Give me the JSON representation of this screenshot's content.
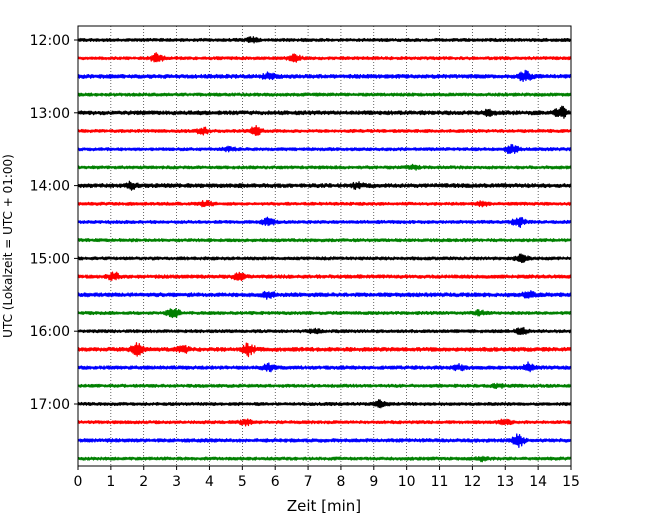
{
  "chart_data": {
    "type": "line",
    "title": "",
    "xlabel": "Zeit  [min]",
    "ylabel": "UTC (Lokalzeit = UTC + 01:00)",
    "xlim": [
      0,
      15
    ],
    "x_ticks": [
      "0",
      "1",
      "2",
      "3",
      "4",
      "5",
      "6",
      "7",
      "8",
      "9",
      "10",
      "11",
      "12",
      "13",
      "14",
      "15"
    ],
    "y_ticks": [
      {
        "label": "12:00",
        "trace_index": 0
      },
      {
        "label": "13:00",
        "trace_index": 4
      },
      {
        "label": "14:00",
        "trace_index": 8
      },
      {
        "label": "15:00",
        "trace_index": 12
      },
      {
        "label": "16:00",
        "trace_index": 16
      },
      {
        "label": "17:00",
        "trace_index": 20
      }
    ],
    "trace_interval_min": 15,
    "grid": {
      "x": "dotted",
      "y": false
    },
    "colors": [
      "#000000",
      "#ff0000",
      "#0000ff",
      "#008000"
    ],
    "series": [
      {
        "start": "12:00",
        "color": "#000000",
        "noise": 0.35,
        "events": [
          [
            5.3,
            0.5
          ]
        ]
      },
      {
        "start": "12:15",
        "color": "#ff0000",
        "noise": 0.35,
        "events": [
          [
            2.4,
            1.0
          ],
          [
            6.6,
            0.8
          ]
        ]
      },
      {
        "start": "12:30",
        "color": "#0000ff",
        "noise": 0.45,
        "events": [
          [
            5.8,
            0.7
          ],
          [
            13.6,
            1.1
          ]
        ]
      },
      {
        "start": "12:45",
        "color": "#008000",
        "noise": 0.35,
        "events": []
      },
      {
        "start": "13:00",
        "color": "#000000",
        "noise": 0.45,
        "events": [
          [
            12.5,
            0.5
          ],
          [
            14.7,
            1.2
          ]
        ]
      },
      {
        "start": "13:15",
        "color": "#ff0000",
        "noise": 0.35,
        "events": [
          [
            3.8,
            0.7
          ],
          [
            5.4,
            1.0
          ]
        ]
      },
      {
        "start": "13:30",
        "color": "#0000ff",
        "noise": 0.35,
        "events": [
          [
            4.6,
            0.4
          ],
          [
            13.2,
            1.1
          ]
        ]
      },
      {
        "start": "13:45",
        "color": "#008000",
        "noise": 0.35,
        "events": [
          [
            10.2,
            0.4
          ]
        ]
      },
      {
        "start": "14:00",
        "color": "#000000",
        "noise": 0.45,
        "events": [
          [
            1.6,
            0.8
          ],
          [
            8.5,
            0.6
          ]
        ]
      },
      {
        "start": "14:15",
        "color": "#ff0000",
        "noise": 0.35,
        "events": [
          [
            3.9,
            0.6
          ],
          [
            12.3,
            0.5
          ]
        ]
      },
      {
        "start": "14:30",
        "color": "#0000ff",
        "noise": 0.35,
        "events": [
          [
            5.8,
            0.9
          ],
          [
            13.4,
            1.1
          ]
        ]
      },
      {
        "start": "14:45",
        "color": "#008000",
        "noise": 0.35,
        "events": []
      },
      {
        "start": "15:00",
        "color": "#000000",
        "noise": 0.35,
        "events": [
          [
            13.5,
            0.8
          ]
        ]
      },
      {
        "start": "15:15",
        "color": "#ff0000",
        "noise": 0.4,
        "events": [
          [
            1.1,
            0.8
          ],
          [
            4.9,
            0.7
          ]
        ]
      },
      {
        "start": "15:30",
        "color": "#0000ff",
        "noise": 0.45,
        "events": [
          [
            5.8,
            0.7
          ],
          [
            13.7,
            0.7
          ]
        ]
      },
      {
        "start": "15:45",
        "color": "#008000",
        "noise": 0.35,
        "events": [
          [
            2.9,
            1.2
          ],
          [
            12.2,
            0.5
          ]
        ]
      },
      {
        "start": "16:00",
        "color": "#000000",
        "noise": 0.35,
        "events": [
          [
            7.2,
            0.4
          ],
          [
            13.5,
            0.7
          ]
        ]
      },
      {
        "start": "16:15",
        "color": "#ff0000",
        "noise": 0.45,
        "events": [
          [
            1.8,
            1.2
          ],
          [
            3.2,
            0.7
          ],
          [
            5.2,
            1.3
          ]
        ]
      },
      {
        "start": "16:30",
        "color": "#0000ff",
        "noise": 0.4,
        "events": [
          [
            5.8,
            0.7
          ],
          [
            11.6,
            0.6
          ],
          [
            13.7,
            1.0
          ]
        ]
      },
      {
        "start": "16:45",
        "color": "#008000",
        "noise": 0.35,
        "events": [
          [
            12.8,
            0.4
          ]
        ]
      },
      {
        "start": "17:00",
        "color": "#000000",
        "noise": 0.35,
        "events": [
          [
            9.2,
            0.8
          ]
        ]
      },
      {
        "start": "17:15",
        "color": "#ff0000",
        "noise": 0.35,
        "events": [
          [
            5.1,
            0.6
          ],
          [
            13.0,
            0.6
          ]
        ]
      },
      {
        "start": "17:30",
        "color": "#0000ff",
        "noise": 0.4,
        "events": [
          [
            13.4,
            1.3
          ]
        ]
      },
      {
        "start": "17:45",
        "color": "#008000",
        "noise": 0.35,
        "events": [
          [
            12.3,
            0.4
          ]
        ]
      }
    ]
  }
}
